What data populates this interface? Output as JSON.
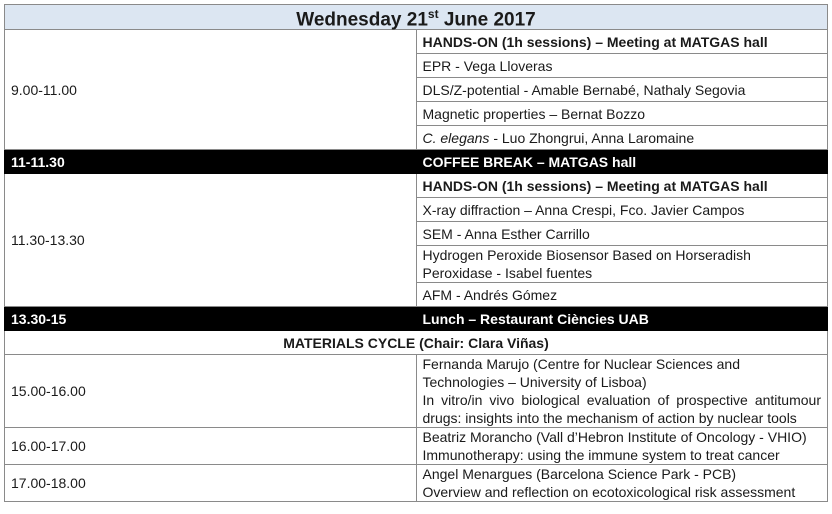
{
  "header": {
    "title_prefix": "Wednesday 21",
    "title_sup": "st",
    "title_suffix": " June 2017"
  },
  "block1": {
    "time": "9.00-11.00",
    "title": "HANDS-ON (1h sessions) – Meeting at MATGAS hall",
    "items": [
      "EPR - Vega Lloveras",
      "DLS/Z-potential -   Amable Bernabé, Nathaly Segovia",
      "Magnetic properties – Bernat Bozzo"
    ],
    "item4_italic": "C. elegans",
    "item4_rest": " - Luo Zhongrui, Anna Laromaine"
  },
  "coffee": {
    "time": "11-11.30",
    "label": "COFFEE BREAK  – MATGAS hall"
  },
  "block2": {
    "time": "11.30-13.30",
    "title": "HANDS-ON (1h sessions) – Meeting at MATGAS hall",
    "items": [
      "X-ray diffraction – Anna Crespi, Fco. Javier Campos",
      "SEM - Anna Esther Carrillo",
      "Hydrogen Peroxide Biosensor Based on Horseradish Peroxidase - Isabel fuentes",
      "AFM - Andrés Gómez"
    ]
  },
  "lunch": {
    "time": "13.30-15",
    "label": "Lunch  – Restaurant Ciències UAB"
  },
  "cycle": {
    "label": "MATERIALS CYCLE (Chair: Clara Viñas)"
  },
  "talks": [
    {
      "time": "15.00-16.00",
      "speaker": "Fernanda Marujo (Centre for Nuclear Sciences and Technologies – University of Lisboa)",
      "topic": "In vitro/in vivo biological evaluation of prospective antitumour drugs: insights into the mechanism of action by nuclear tools"
    },
    {
      "time": "16.00-17.00",
      "speaker": "Beatriz Morancho (Vall d’Hebron Institute of Oncology - VHIO)",
      "topic": "Immunotherapy: using the immune system to treat cancer"
    },
    {
      "time": "17.00-18.00",
      "speaker": "Angel Menargues (Barcelona Science Park - PCB)",
      "topic": "Overview and reflection on ecotoxicological risk assessment"
    }
  ]
}
